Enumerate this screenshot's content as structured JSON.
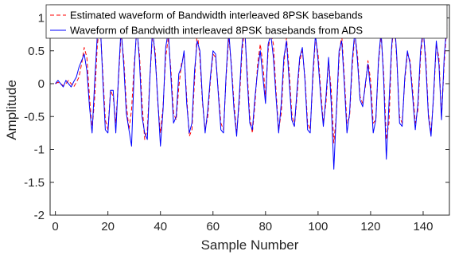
{
  "chart_data": {
    "type": "line",
    "xlabel": "Sample Number",
    "ylabel": "Amplitude",
    "xlim": [
      -2,
      150
    ],
    "ylim": [
      -2,
      1.2
    ],
    "xticks": [
      0,
      20,
      40,
      60,
      80,
      100,
      120,
      140
    ],
    "yticks": [
      -2,
      -1.5,
      -1,
      -0.5,
      0,
      0.5,
      1
    ],
    "ytick_labels": [
      "-2",
      "-1.5",
      "-1",
      "-0.5",
      "0",
      "0.5",
      "1"
    ],
    "grid": false,
    "legend_position": "top-right",
    "x": [
      0,
      1,
      2,
      3,
      4,
      5,
      6,
      7,
      8,
      9,
      10,
      11,
      12,
      13,
      14,
      15,
      16,
      17,
      18,
      19,
      20,
      21,
      22,
      23,
      24,
      25,
      26,
      27,
      28,
      29,
      30,
      31,
      32,
      33,
      34,
      35,
      36,
      37,
      38,
      39,
      40,
      41,
      42,
      43,
      44,
      45,
      46,
      47,
      48,
      49,
      50,
      51,
      52,
      53,
      54,
      55,
      56,
      57,
      58,
      59,
      60,
      61,
      62,
      63,
      64,
      65,
      66,
      67,
      68,
      69,
      70,
      71,
      72,
      73,
      74,
      75,
      76,
      77,
      78,
      79,
      80,
      81,
      82,
      83,
      84,
      85,
      86,
      87,
      88,
      89,
      90,
      91,
      92,
      93,
      94,
      95,
      96,
      97,
      98,
      99,
      100,
      101,
      102,
      103,
      104,
      105,
      106,
      107,
      108,
      109,
      110,
      111,
      112,
      113,
      114,
      115,
      116,
      117,
      118,
      119,
      120,
      121,
      122,
      123,
      124,
      125,
      126,
      127,
      128,
      129,
      130,
      131,
      132,
      133,
      134,
      135,
      136,
      137,
      138,
      139,
      140,
      141,
      142,
      143,
      144,
      145,
      146,
      147,
      148,
      149
    ],
    "series": [
      {
        "name": "Estimated waveform of Bandwidth interleaved 8PSK basebands",
        "color": "#ff0000",
        "style": "dashed",
        "values": [
          0,
          0.02,
          0,
          -0.03,
          0,
          0.05,
          0,
          -0.05,
          0.02,
          0.1,
          0.3,
          0.55,
          0.4,
          -0.2,
          -0.7,
          -0.2,
          0.6,
          0.9,
          0.2,
          -0.55,
          -0.7,
          -0.1,
          -0.2,
          -0.6,
          0.05,
          0.75,
          0.4,
          -0.3,
          -0.7,
          -0.4,
          0.3,
          0.8,
          0.45,
          -0.3,
          -0.85,
          -0.7,
          0.1,
          0.75,
          0.5,
          -0.3,
          -0.75,
          -0.35,
          0.4,
          0.7,
          0.2,
          -0.45,
          -0.55,
          -0.05,
          0.3,
          0.45,
          -0.2,
          -0.8,
          -0.7,
          0.05,
          0.8,
          0.4,
          -0.3,
          -0.7,
          -0.5,
          0.05,
          0.45,
          0.4,
          -0.1,
          -0.6,
          -0.7,
          0.1,
          0.7,
          0.3,
          -0.3,
          -0.75,
          -0.3,
          0.45,
          0.85,
          0.2,
          -0.5,
          -0.75,
          -0.3,
          0.3,
          0.6,
          0.3,
          -0.2,
          0.5,
          0.8,
          0.6,
          -0.1,
          -0.7,
          -0.45,
          0.3,
          0.7,
          0.2,
          -0.45,
          -0.65,
          -0.2,
          0.35,
          0.5,
          0.1,
          -0.6,
          -0.7,
          0.05,
          0.7,
          0.45,
          -0.1,
          -0.6,
          -0.3,
          0.35,
          -0.1,
          -0.9,
          -0.45,
          0.4,
          0.75,
          0.1,
          -0.6,
          -0.5,
          0.25,
          0.75,
          0.45,
          -0.2,
          -0.3,
          -0.05,
          0.35,
          0.05,
          -0.6,
          -0.55,
          0.3,
          0.75,
          0.15,
          -0.85,
          -0.6,
          0.5,
          1,
          0.35,
          -0.5,
          -0.6,
          0.05,
          0.45,
          0.35,
          -0.1,
          -0.6,
          -0.4,
          0.4,
          0.8,
          0.4,
          -0.45,
          -0.75,
          -0.2,
          0.6,
          0.4,
          -0.5,
          0.3,
          0.85
        ]
      },
      {
        "name": "Waveform of Bandwidth interleaved 8PSK basebands from ADS",
        "color": "#0000ff",
        "style": "solid",
        "values": [
          0,
          0.05,
          0,
          -0.05,
          0.05,
          0,
          -0.05,
          0.03,
          0.1,
          0.25,
          0.35,
          0.45,
          0.2,
          -0.35,
          -0.75,
          0.05,
          0.75,
          1,
          0.1,
          -0.7,
          -0.75,
          -0.1,
          -0.1,
          -0.75,
          0.1,
          0.85,
          0.3,
          -0.45,
          -0.7,
          -0.95,
          0.2,
          0.9,
          0.35,
          -0.5,
          -0.75,
          -0.85,
          0.1,
          0.85,
          0.4,
          -0.25,
          -0.95,
          -0.4,
          0.55,
          0.8,
          0.1,
          -0.6,
          -0.5,
          0.15,
          0.25,
          0.5,
          -0.3,
          -0.75,
          -0.6,
          0.2,
          0.65,
          0.5,
          -0.25,
          -0.75,
          -0.4,
          0.1,
          0.5,
          0.45,
          -0.15,
          -0.7,
          -0.75,
          0.15,
          0.8,
          0.25,
          -0.4,
          -0.8,
          -0.2,
          0.55,
          0.95,
          0.1,
          -0.6,
          -0.7,
          -0.2,
          0.2,
          0.5,
          0.1,
          -0.3,
          0.6,
          0.75,
          0.4,
          -0.2,
          -0.75,
          -0.3,
          0.4,
          0.65,
          0.05,
          -0.55,
          -0.65,
          -0.1,
          0.4,
          0.55,
          0.05,
          -0.7,
          -0.75,
          0.15,
          0.75,
          0.35,
          -0.2,
          -0.65,
          -0.2,
          0.4,
          -0.3,
          -1.3,
          -0.4,
          0.5,
          0.65,
          0,
          -0.75,
          -0.45,
          0.35,
          0.8,
          0.35,
          -0.25,
          -0.35,
          0,
          0.3,
          -0.1,
          -0.75,
          -0.55,
          0.35,
          0.8,
          0.05,
          -1.15,
          -0.3,
          0.55,
          1.05,
          0.4,
          -0.6,
          -0.65,
          0.1,
          0.5,
          0.3,
          -0.2,
          -0.7,
          -0.3,
          0.5,
          0.85,
          0.3,
          -0.5,
          -0.8,
          -0.15,
          0.65,
          0.3,
          -0.55,
          0.4,
          0.9
        ]
      }
    ]
  }
}
